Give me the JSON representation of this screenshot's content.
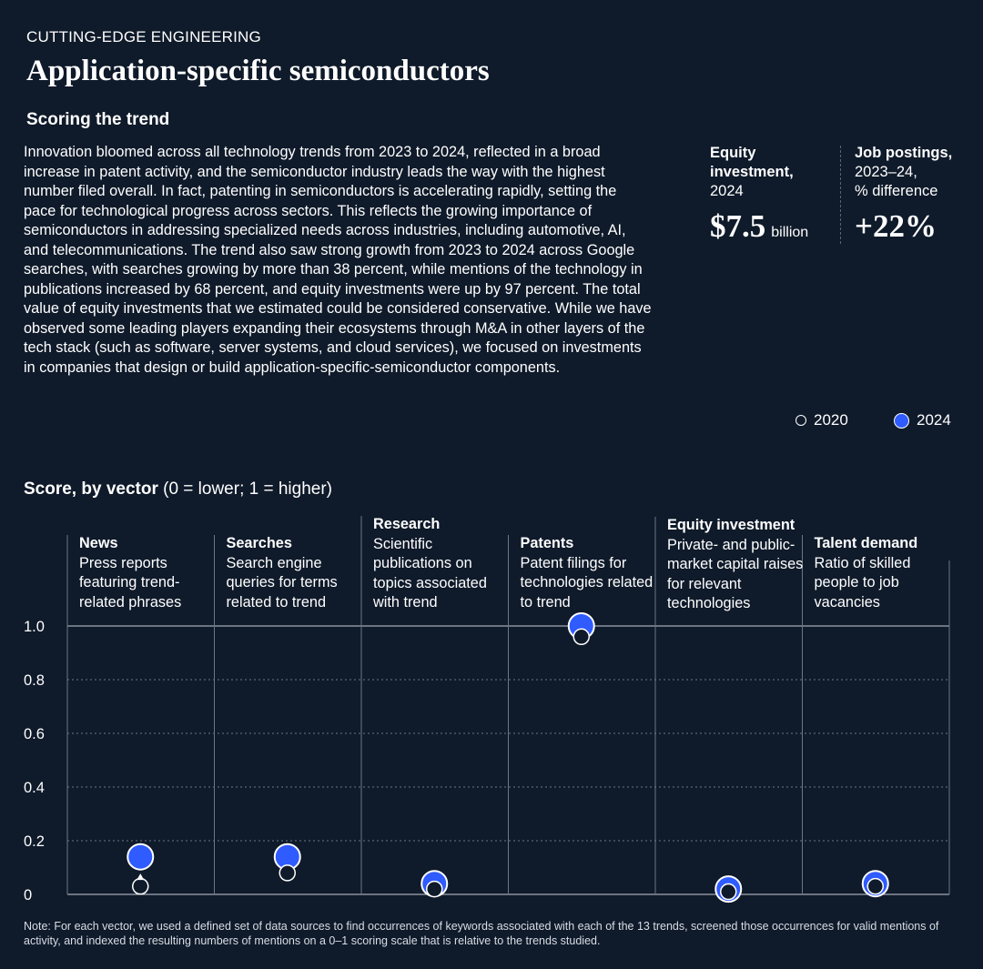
{
  "header": {
    "eyebrow": "CUTTING-EDGE ENGINEERING",
    "title": "Application-specific semiconductors",
    "subtitle": "Scoring the trend"
  },
  "body": "Innovation bloomed across all technology trends from 2023 to 2024, reflected in a broad increase in patent activity, and the semiconductor industry leads the way with the highest number filed overall. In fact, patenting in semiconductors is accelerating rapidly, setting the pace for technological progress across sectors. This reflects the growing importance of semiconductors in addressing specialized needs across industries, including automotive, AI, and telecommunications. The trend also saw strong growth from 2023 to 2024 across Google searches, with searches growing by more than 38 percent, while mentions of the technology in publications increased by 68 percent, and equity investments were up by 97 percent. The total value of equity investments that we estimated could be considered conservative. While we have observed some leading players expanding their ecosystems through M&A in other layers of the tech stack (such as software, server systems, and cloud services), we focused on investments in companies that design or build application-specific-semiconductor components.",
  "stats": {
    "equity": {
      "label_bold_1": "Equity",
      "label_bold_2": "investment,",
      "label_sub": "2024",
      "value": "$7.5",
      "unit": "billion"
    },
    "jobs": {
      "label_bold": "Job postings,",
      "label_sub_1": "2023–24,",
      "label_sub_2": "% difference",
      "value": "+22%"
    }
  },
  "legend": {
    "item_2020": "2020",
    "item_2024": "2024"
  },
  "score_title": {
    "bold": "Score, by vector",
    "rest": " (0 = lower; 1 = higher)"
  },
  "note": "Note: For each vector, we used a defined set of data sources to find occurrences of keywords associated with each of the 13 trends, screened those occurrences for valid mentions of activity, and indexed the resulting numbers of mentions on a 0–1 scoring scale that is relative to the trends studied.",
  "colors": {
    "background": "#0f1a2a",
    "accent_2024": "#2f5bff",
    "dot_2020": "#ffffff",
    "grid": "#6b7686"
  },
  "chart_data": {
    "type": "scatter",
    "categories": [
      "News",
      "Searches",
      "Research",
      "Patents",
      "Equity investment",
      "Talent demand"
    ],
    "descriptions": [
      "Press reports featuring trend-related phrases",
      "Search engine queries for terms related to trend",
      "Scientific publications on topics associated with trend",
      "Patent filings for technologies related to trend",
      "Private- and public-market capital raises for relevant technologies",
      "Ratio of skilled people to job vacancies"
    ],
    "series": [
      {
        "name": "2020",
        "values": [
          0.03,
          0.08,
          0.02,
          0.96,
          0.01,
          0.03
        ]
      },
      {
        "name": "2024",
        "values": [
          0.14,
          0.14,
          0.04,
          1.0,
          0.02,
          0.04
        ]
      }
    ],
    "y_ticks": [
      "0",
      "0.2",
      "0.4",
      "0.6",
      "0.8",
      "1.0"
    ],
    "ylim": [
      0,
      1
    ],
    "grid": true
  }
}
